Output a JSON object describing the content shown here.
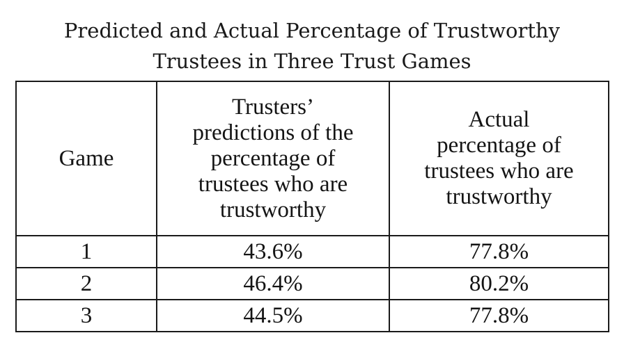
{
  "title": {
    "line1": "Predicted and Actual Percentage of Trustworthy",
    "line2": "Trustees in Three Trust Games"
  },
  "table": {
    "headers": {
      "game": "Game",
      "predicted": [
        "Trusters’",
        "predictions of the",
        "percentage of",
        "trustees who are",
        "trustworthy"
      ],
      "actual": [
        "Actual",
        "percentage of",
        "trustees who are",
        "trustworthy"
      ]
    },
    "rows": [
      {
        "game": "1",
        "predicted": "43.6%",
        "actual": "77.8%"
      },
      {
        "game": "2",
        "predicted": "46.4%",
        "actual": "80.2%"
      },
      {
        "game": "3",
        "predicted": "44.5%",
        "actual": "77.8%"
      }
    ]
  }
}
